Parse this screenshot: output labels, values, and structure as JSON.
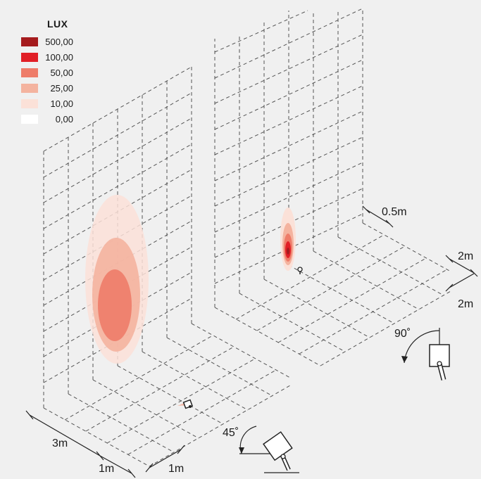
{
  "legend": {
    "title": "LUX",
    "items": [
      {
        "label": "500,00",
        "color": "#a51b1d"
      },
      {
        "label": "100,00",
        "color": "#e11f26"
      },
      {
        "label": "50,00",
        "color": "#ee7c69"
      },
      {
        "label": "25,00",
        "color": "#f4b39f"
      },
      {
        "label": "10,00",
        "color": "#fbe1d8"
      },
      {
        "label": "0,00",
        "color": "#ffffff"
      }
    ]
  },
  "dimensions": {
    "left_depth": "3m",
    "left_width_a": "1m",
    "left_width_b": "1m",
    "right_offset": "0.5m",
    "right_spacing_a": "2m",
    "right_spacing_b": "2m"
  },
  "angles": {
    "left_tilt": "45˚",
    "right_tilt": "90˚"
  },
  "colors": {
    "background": "#f0f0f0",
    "grid_line": "#555555"
  }
}
